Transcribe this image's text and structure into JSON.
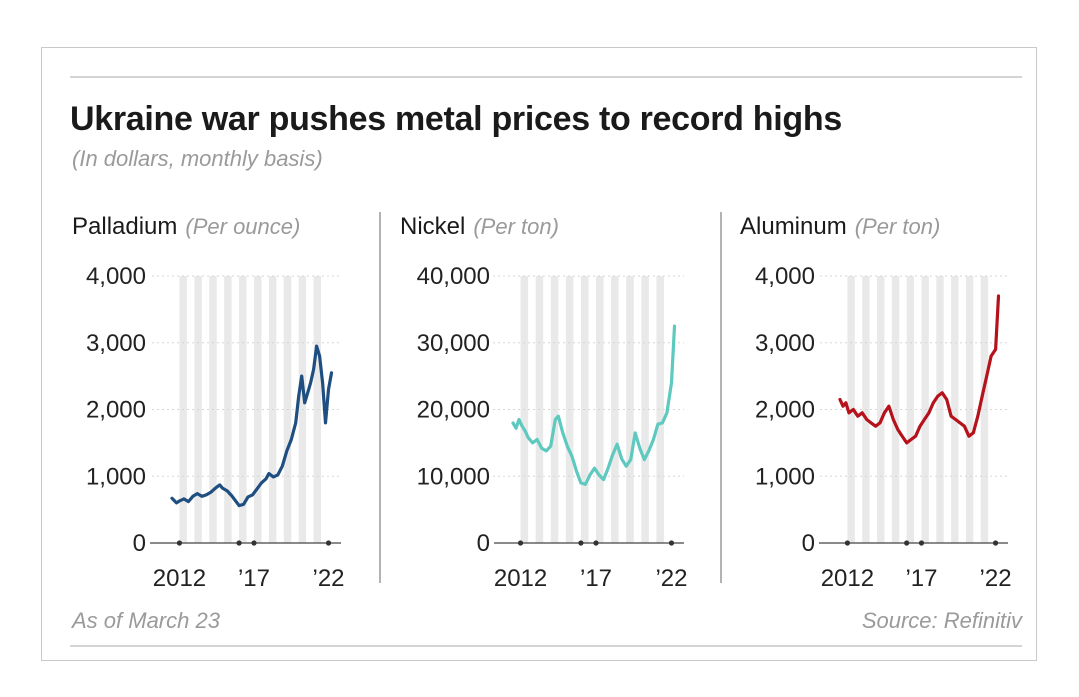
{
  "header": {
    "title": "Ukraine war pushes metal prices to record highs",
    "subtitle": "(In dollars, monthly basis)"
  },
  "footer": {
    "note": "As of March 23",
    "source": "Source: Refinitiv"
  },
  "colors": {
    "palladium": "#1f4e80",
    "nickel": "#5ec9bf",
    "aluminum": "#b5121b",
    "band": "#e9e9e9",
    "grid": "#d6d6d6"
  },
  "chart_data": [
    {
      "type": "line",
      "title": "Palladium",
      "unit": "(Per ounce)",
      "ylim": [
        0,
        4000
      ],
      "y_ticks": [
        0,
        1000,
        2000,
        3000,
        4000
      ],
      "y_tick_labels": [
        "0",
        "1,000",
        "2,000",
        "3,000",
        "4,000"
      ],
      "xlim": [
        2011.5,
        2022.3
      ],
      "x_ticks": [
        2012,
        2017,
        2022
      ],
      "x_tick_labels": [
        "2012",
        "’17",
        "’22"
      ],
      "x_dots": [
        2012,
        2016,
        2017,
        2022
      ],
      "bands": [
        2012,
        2013,
        2014,
        2015,
        2016,
        2017,
        2018,
        2019,
        2020,
        2021
      ],
      "series": [
        {
          "x": [
            2011.5,
            2011.8,
            2012.0,
            2012.3,
            2012.6,
            2012.9,
            2013.2,
            2013.5,
            2013.8,
            2014.1,
            2014.4,
            2014.7,
            2014.9,
            2015.2,
            2015.5,
            2015.8,
            2016.0,
            2016.3,
            2016.6,
            2016.9,
            2017.2,
            2017.5,
            2017.8,
            2018.0,
            2018.3,
            2018.6,
            2018.9,
            2019.2,
            2019.5,
            2019.8,
            2020.0,
            2020.2,
            2020.4,
            2020.6,
            2020.8,
            2021.0,
            2021.2,
            2021.4,
            2021.6,
            2021.8,
            2022.0,
            2022.2
          ],
          "values": [
            670,
            600,
            630,
            660,
            620,
            700,
            740,
            700,
            720,
            760,
            820,
            870,
            820,
            780,
            710,
            620,
            560,
            580,
            690,
            720,
            810,
            900,
            960,
            1040,
            990,
            1020,
            1150,
            1380,
            1550,
            1800,
            2200,
            2500,
            2100,
            2250,
            2400,
            2600,
            2950,
            2800,
            2400,
            1800,
            2300,
            2550
          ]
        }
      ]
    },
    {
      "type": "line",
      "title": "Nickel",
      "unit": "(Per ton)",
      "ylim": [
        0,
        40000
      ],
      "y_ticks": [
        0,
        10000,
        20000,
        30000,
        40000
      ],
      "y_tick_labels": [
        "0",
        "10,000",
        "20,000",
        "30,000",
        "40,000"
      ],
      "xlim": [
        2011.5,
        2022.3
      ],
      "x_ticks": [
        2012,
        2017,
        2022
      ],
      "x_tick_labels": [
        "2012",
        "’17",
        "’22"
      ],
      "x_dots": [
        2012,
        2016,
        2017,
        2022
      ],
      "bands": [
        2012,
        2013,
        2014,
        2015,
        2016,
        2017,
        2018,
        2019,
        2020,
        2021
      ],
      "series": [
        {
          "x": [
            2011.5,
            2011.7,
            2011.9,
            2012.1,
            2012.3,
            2012.5,
            2012.8,
            2013.1,
            2013.4,
            2013.7,
            2014.0,
            2014.3,
            2014.5,
            2014.8,
            2015.1,
            2015.4,
            2015.7,
            2016.0,
            2016.3,
            2016.6,
            2016.9,
            2017.2,
            2017.5,
            2017.8,
            2018.1,
            2018.4,
            2018.7,
            2019.0,
            2019.3,
            2019.6,
            2019.9,
            2020.2,
            2020.5,
            2020.8,
            2021.1,
            2021.4,
            2021.7,
            2022.0,
            2022.2
          ],
          "values": [
            18000,
            17200,
            18500,
            17500,
            16800,
            15800,
            15000,
            15500,
            14200,
            13800,
            14500,
            18500,
            19000,
            16500,
            14500,
            13000,
            10800,
            9000,
            8800,
            10200,
            11200,
            10200,
            9500,
            11200,
            13200,
            14800,
            12600,
            11500,
            12500,
            16500,
            14200,
            12500,
            13800,
            15500,
            17800,
            18000,
            19500,
            24000,
            32500
          ]
        }
      ]
    },
    {
      "type": "line",
      "title": "Aluminum",
      "unit": "(Per ton)",
      "ylim": [
        0,
        4000
      ],
      "y_ticks": [
        0,
        1000,
        2000,
        3000,
        4000
      ],
      "y_tick_labels": [
        "0",
        "1,000",
        "2,000",
        "3,000",
        "4,000"
      ],
      "xlim": [
        2011.5,
        2022.3
      ],
      "x_ticks": [
        2012,
        2017,
        2022
      ],
      "x_tick_labels": [
        "2012",
        "’17",
        "’22"
      ],
      "x_dots": [
        2012,
        2016,
        2017,
        2022
      ],
      "bands": [
        2012,
        2013,
        2014,
        2015,
        2016,
        2017,
        2018,
        2019,
        2020,
        2021
      ],
      "series": [
        {
          "x": [
            2011.5,
            2011.7,
            2011.9,
            2012.1,
            2012.4,
            2012.7,
            2013.0,
            2013.3,
            2013.6,
            2013.9,
            2014.2,
            2014.5,
            2014.8,
            2015.1,
            2015.4,
            2015.7,
            2016.0,
            2016.3,
            2016.6,
            2016.9,
            2017.2,
            2017.5,
            2017.8,
            2018.1,
            2018.4,
            2018.7,
            2019.0,
            2019.3,
            2019.6,
            2019.9,
            2020.2,
            2020.5,
            2020.8,
            2021.1,
            2021.4,
            2021.7,
            2022.0,
            2022.2
          ],
          "values": [
            2150,
            2050,
            2100,
            1950,
            2000,
            1900,
            1950,
            1850,
            1800,
            1750,
            1800,
            1950,
            2050,
            1850,
            1700,
            1600,
            1500,
            1550,
            1600,
            1750,
            1850,
            1950,
            2100,
            2200,
            2250,
            2150,
            1900,
            1850,
            1800,
            1750,
            1600,
            1650,
            1900,
            2200,
            2500,
            2800,
            2900,
            3700
          ]
        }
      ]
    }
  ]
}
